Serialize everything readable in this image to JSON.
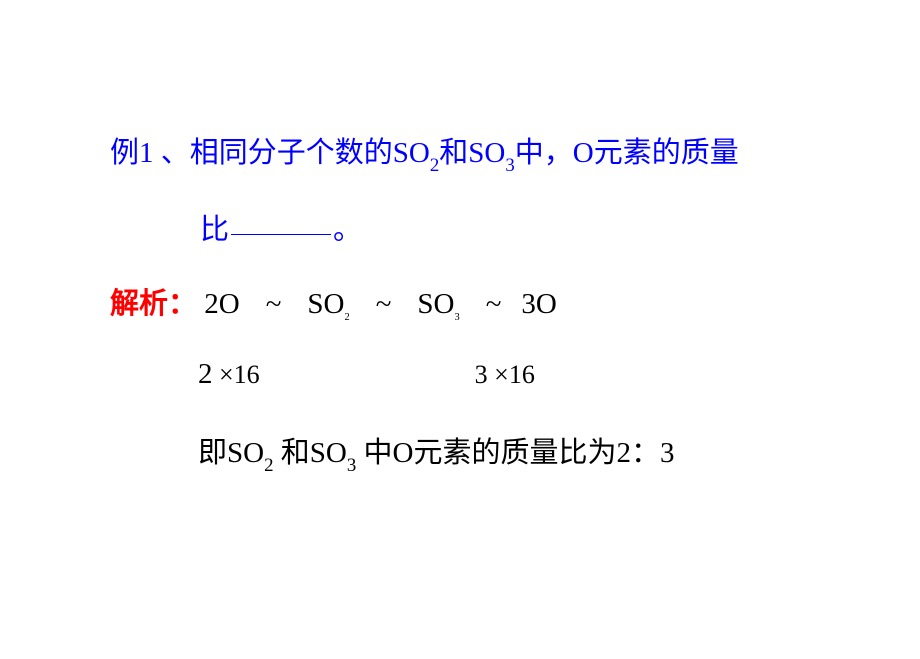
{
  "question": {
    "prefix": "例1 、相同分子个数的SO",
    "sub1": "2",
    "mid1": "和SO",
    "sub2": "3",
    "mid2": "中，O元素的质量",
    "line2_prefix": "比",
    "line2_suffix": "。"
  },
  "analysis": {
    "label": "解析：",
    "p1": " 2O",
    "tilde1": "~",
    "p2": "SO",
    "p2_sub": "2",
    "tilde2": "~",
    "p3": "SO",
    "p3_sub": "3",
    "tilde3": "~",
    "p4": "3O"
  },
  "calc": {
    "left_num": "2",
    "left_rest": " ×16",
    "right_num": "3",
    "right_rest": " ×16"
  },
  "conclusion": {
    "p1": "即SO",
    "s1": "2",
    "p2": " 和SO",
    "s2": "3",
    "p3": " 中O元素的质量比为2：3"
  },
  "style": {
    "question_color": "#0000ff",
    "label_color": "#ff0000",
    "body_color": "#000000",
    "background": "#ffffff",
    "base_fontsize": 29,
    "calc_fontsize": 26
  }
}
